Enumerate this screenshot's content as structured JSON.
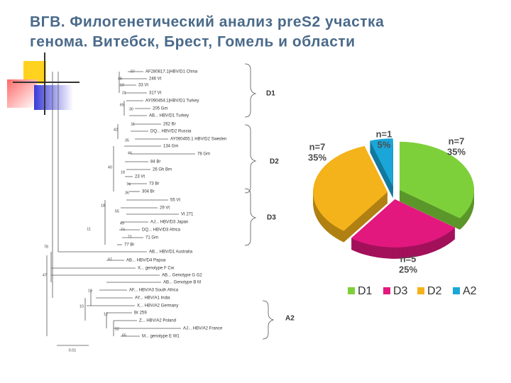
{
  "title": [
    "ВГВ. Филогенетический анализ preS2 участка",
    "генома. Витебск, Брест, Гомель и области"
  ],
  "tree": {
    "leaves": [
      "AF280817.1|HBV/D1 China",
      "246 Vt",
      "33 Vt",
      "317 Vt",
      "AY090454.1|HBV/D1 Turkey",
      "205 Gm",
      "AB... HBV/D1 Turkey",
      "262 Br",
      "DQ... HBV/D2 Russia",
      "AY090455.1 HBV/D2 Sweden",
      "134 Gm",
      "78 Gm",
      "84 Br",
      "26 Gh Bm",
      "23 Vt",
      "73 Br",
      "304 Br",
      "55 Vt",
      "29 Vt",
      "Vt 271",
      "AJ... HBV/D3 Japan",
      "DQ... HBV/D3 Africa",
      "71 Gm",
      "77 Br",
      "AB... HBV/D1 Australia",
      "AB... HBV/D4 Papua",
      "X... genotype F Cw",
      "AB... Genotype G G2",
      "AB... Genotype B M",
      "AF... HBV/A3 South Africa",
      "AY... HBV/A1 India",
      "X... HBV/A2 Germany",
      "Br 259",
      "Z... HBV/A2 Poland",
      "AJ... HBV/A2 France",
      "M... genotype E W1"
    ],
    "bootstrap": [
      "97",
      "46",
      "10",
      "21",
      "65",
      "30",
      "11",
      "42",
      "35",
      "46",
      "40",
      "18",
      "74",
      "36",
      "18",
      "55",
      "49",
      "11",
      "74",
      "71",
      "78",
      "97",
      "47",
      "19",
      "10",
      "12",
      "52",
      "65"
    ],
    "clades": [
      "D1",
      "D2",
      "D3",
      "A2"
    ],
    "scale": "0.01"
  },
  "chart_data": {
    "type": "pie",
    "categories": [
      "D1",
      "D3",
      "D2",
      "A2"
    ],
    "values": [
      35,
      25,
      35,
      5
    ],
    "value_labels": [
      "35%",
      "25%",
      "35%",
      "5%"
    ],
    "count_labels": [
      "n=7",
      "n=5",
      "n=7",
      "n=1"
    ],
    "colors": [
      "#7ed03b",
      "#e2187e",
      "#f4b21b",
      "#1aa6d8"
    ],
    "legend": "bottom"
  }
}
